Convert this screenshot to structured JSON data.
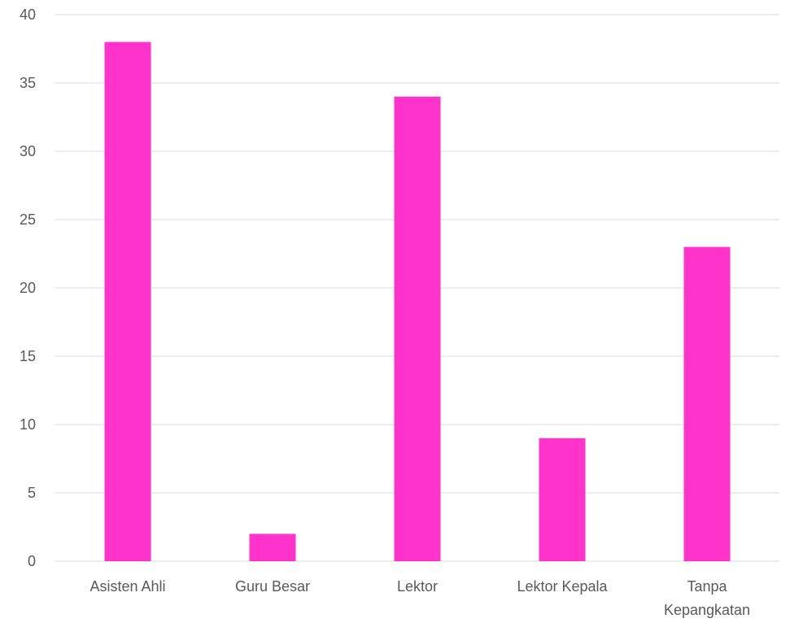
{
  "chart_data": {
    "type": "bar",
    "categories": [
      "Asisten Ahli",
      "Guru Besar",
      "Lektor",
      "Lektor Kepala",
      "Tanpa Kepangkatan"
    ],
    "category_label_lines": [
      [
        "Asisten Ahli"
      ],
      [
        "Guru Besar"
      ],
      [
        "Lektor"
      ],
      [
        "Lektor Kepala"
      ],
      [
        "Tanpa",
        "Kepangkatan"
      ]
    ],
    "values": [
      38,
      2,
      34,
      9,
      23
    ],
    "title": "",
    "xlabel": "",
    "ylabel": "",
    "ylim": [
      0,
      40
    ],
    "yticks": [
      0,
      5,
      10,
      15,
      20,
      25,
      30,
      35,
      40
    ],
    "grid": true,
    "legend": "none",
    "bar_color": "#ff33cc"
  }
}
